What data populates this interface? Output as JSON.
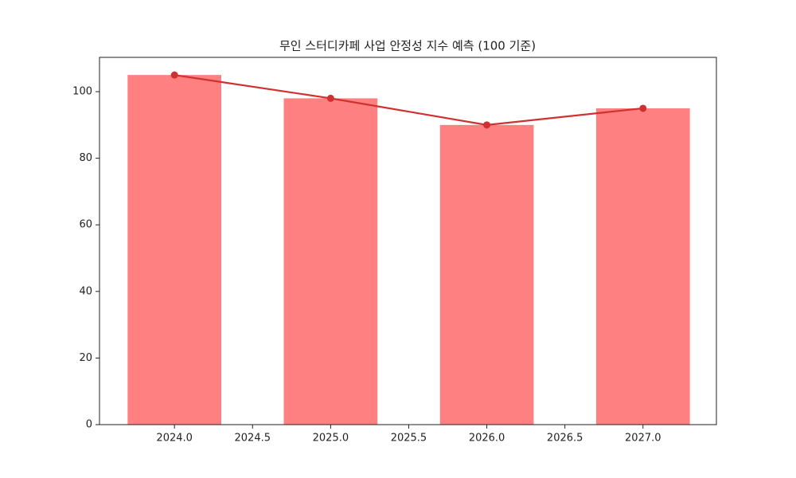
{
  "chart_data": {
    "type": "bar",
    "title": "무인 스터디카페 사업 안정성 지수 예측 (100 기준)",
    "x": [
      2024,
      2025,
      2026,
      2027
    ],
    "series": [
      {
        "type": "bar",
        "color": "#ff8080",
        "values": [
          105,
          98,
          90,
          95
        ]
      },
      {
        "type": "line",
        "color": "#d03030",
        "values": [
          105,
          98,
          90,
          95
        ]
      }
    ],
    "xlim": [
      2023.52,
      2027.47
    ],
    "xticks": [
      {
        "value": 2024,
        "label": "2024.0"
      },
      {
        "value": 2024.5,
        "label": "2024.5"
      },
      {
        "value": 2025,
        "label": "2025.0"
      },
      {
        "value": 2025.5,
        "label": "2025.5"
      },
      {
        "value": 2026,
        "label": "2026.0"
      },
      {
        "value": 2026.5,
        "label": "2026.5"
      },
      {
        "value": 2027,
        "label": "2027.0"
      }
    ],
    "ylim": [
      0,
      110.3
    ],
    "yticks": [
      0,
      20,
      40,
      60,
      80,
      100
    ],
    "grid": false
  }
}
